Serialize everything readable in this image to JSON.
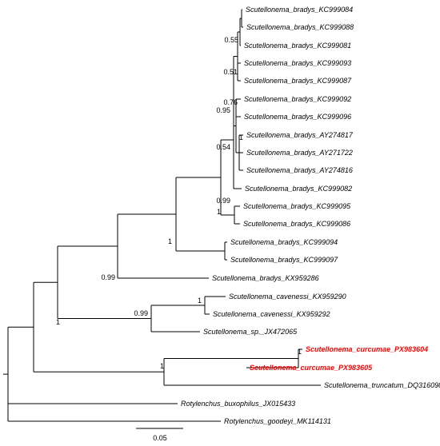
{
  "tree": {
    "colors": {
      "default": "#000000",
      "highlight": "#ff0000"
    },
    "taxa": [
      {
        "label": "Scutellonema_bradys_KC999084",
        "highlight": false
      },
      {
        "label": "Scutellonema_bradys_KC999088",
        "highlight": false
      },
      {
        "label": "Scutellonema_bradys_KC999081",
        "highlight": false
      },
      {
        "label": "Scutellonema_bradys_KC999093",
        "highlight": false
      },
      {
        "label": "Scutellonema_bradys_KC999087",
        "highlight": false
      },
      {
        "label": "Scutellonema_bradys_KC999092",
        "highlight": false
      },
      {
        "label": "Scutellonema_bradys_KC999096",
        "highlight": false
      },
      {
        "label": "Scutellonema_bradys_AY274817",
        "highlight": false
      },
      {
        "label": "Scutellonema_bradys_AY271722",
        "highlight": false
      },
      {
        "label": "Scutellonema_bradys_AY274816",
        "highlight": false
      },
      {
        "label": "Scutellonema_bradys_KC999082",
        "highlight": false
      },
      {
        "label": "Scutellonema_bradys_KC999095",
        "highlight": false
      },
      {
        "label": "Scutellonema_bradys_KC999086",
        "highlight": false
      },
      {
        "label": "Scutellonema_bradys_KC999094",
        "highlight": false
      },
      {
        "label": "Scutellonema_bradys_KC999097",
        "highlight": false
      },
      {
        "label": "Scutellonema_bradys_KX959286",
        "highlight": false
      },
      {
        "label": "Scutellonema_cavenessi_KX959290",
        "highlight": false
      },
      {
        "label": "Scutellonema_cavenessi_KX959292",
        "highlight": false
      },
      {
        "label": "Scutellonema_sp._JX472065",
        "highlight": false
      },
      {
        "label": "Scutellonema_curcumae_PX983604",
        "highlight": true
      },
      {
        "label": "Scutellonema_curcumae_PX983605",
        "highlight": true
      },
      {
        "label": "Scutellonema_truncatum_DQ316098",
        "highlight": false
      },
      {
        "label": "Rotylenchus_buxophilus_JX015433",
        "highlight": false
      },
      {
        "label": "Rotylenchus_goodeyi_MK114131",
        "highlight": false
      }
    ],
    "support_values": [
      "0.55",
      "0.51",
      "0.76",
      "0.95",
      "1",
      "0.54",
      "0.99",
      "1",
      "1",
      "0.99",
      "1",
      "0.99",
      "1",
      "1",
      "1"
    ],
    "scale_bar": {
      "label": "0.05",
      "length": 0.05
    }
  }
}
